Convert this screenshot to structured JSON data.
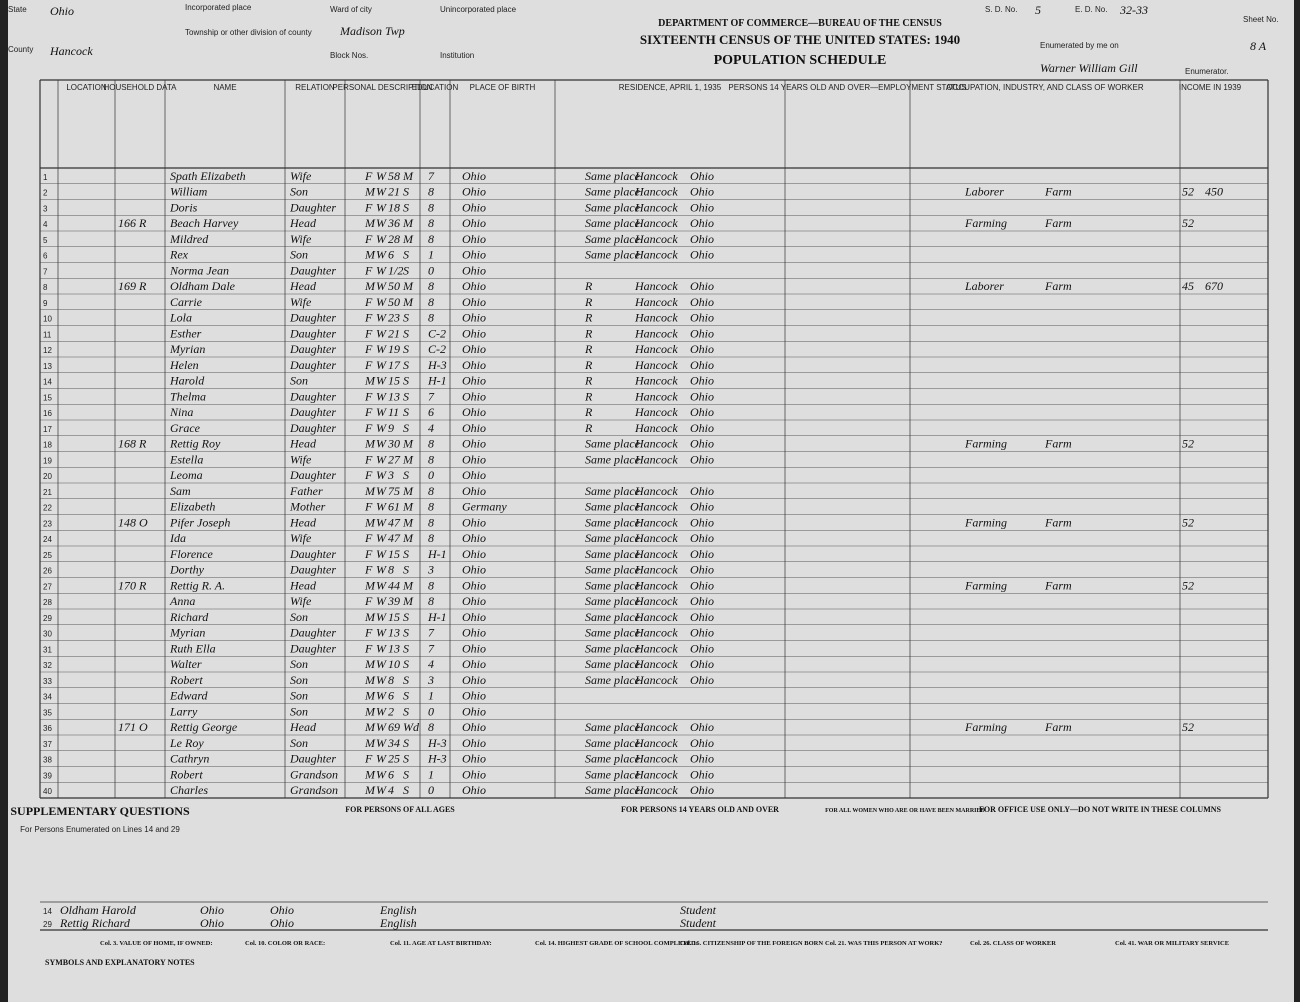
{
  "header": {
    "state_label": "State",
    "state": "Ohio",
    "county_label": "County",
    "county": "Hancock",
    "inc_place_label": "Incorporated place",
    "township_label": "Township or other division of county",
    "township": "Madison Twp",
    "ward_label": "Ward of city",
    "block_label": "Block Nos.",
    "uninc_label": "Unincorporated place",
    "institution_label": "Institution",
    "dept": "DEPARTMENT OF COMMERCE—BUREAU OF THE CENSUS",
    "census": "SIXTEENTH CENSUS OF THE UNITED STATES: 1940",
    "schedule": "POPULATION SCHEDULE",
    "sd_label": "S. D. No.",
    "sd": "5",
    "ed_label": "E. D. No.",
    "ed": "32-33",
    "sheet_label": "Sheet No.",
    "sheet": "8 A",
    "enum_label": "Enumerated by me on",
    "enumerator": "Warner William Gill",
    "enum_suffix": "Enumerator."
  },
  "columns": [
    "LOCATION",
    "HOUSEHOLD DATA",
    "NAME",
    "RELATION",
    "PERSONAL DESCRIPTION",
    "EDUCATION",
    "PLACE OF BIRTH",
    "RESIDENCE, APRIL 1, 1935",
    "PERSONS 14 YEARS OLD AND OVER—EMPLOYMENT STATUS",
    "OCCUPATION, INDUSTRY, AND CLASS OF WORKER",
    "INCOME IN 1939"
  ],
  "rows": [
    [
      "1",
      null,
      "Spath Elizabeth",
      "Wife",
      "F",
      "W",
      "58",
      "M",
      "7",
      "Ohio",
      "Same place",
      "Hancock",
      "Ohio",
      null,
      null,
      null,
      null
    ],
    [
      "2",
      null,
      "William",
      "Son",
      "M",
      "W",
      "21",
      "S",
      "8",
      "Ohio",
      "Same place",
      "Hancock",
      "Ohio",
      "Laborer",
      "Farm",
      "52",
      "450"
    ],
    [
      "3",
      null,
      "Doris",
      "Daughter",
      "F",
      "W",
      "18",
      "S",
      "8",
      "Ohio",
      "Same place",
      "Hancock",
      "Ohio",
      null,
      null,
      null,
      null
    ],
    [
      "4",
      "166 R",
      "Beach Harvey",
      "Head",
      "M",
      "W",
      "36",
      "M",
      "8",
      "Ohio",
      "Same place",
      "Hancock",
      "Ohio",
      "Farming",
      "Farm",
      "52",
      null
    ],
    [
      "5",
      null,
      "Mildred",
      "Wife",
      "F",
      "W",
      "28",
      "M",
      "8",
      "Ohio",
      "Same place",
      "Hancock",
      "Ohio",
      null,
      null,
      null,
      null
    ],
    [
      "6",
      null,
      "Rex",
      "Son",
      "M",
      "W",
      "6",
      "S",
      "1",
      "Ohio",
      "Same place",
      "Hancock",
      "Ohio",
      null,
      null,
      null,
      null
    ],
    [
      "7",
      null,
      "Norma Jean",
      "Daughter",
      "F",
      "W",
      "1/2",
      "S",
      "0",
      "Ohio",
      null,
      null,
      null,
      null,
      null,
      null,
      null
    ],
    [
      "8",
      "169 R",
      "Oldham Dale",
      "Head",
      "M",
      "W",
      "50",
      "M",
      "8",
      "Ohio",
      "R",
      "Hancock",
      "Ohio",
      "Laborer",
      "Farm",
      "45",
      "670"
    ],
    [
      "9",
      null,
      "Carrie",
      "Wife",
      "F",
      "W",
      "50",
      "M",
      "8",
      "Ohio",
      "R",
      "Hancock",
      "Ohio",
      null,
      null,
      null,
      null
    ],
    [
      "10",
      null,
      "Lola",
      "Daughter",
      "F",
      "W",
      "23",
      "S",
      "8",
      "Ohio",
      "R",
      "Hancock",
      "Ohio",
      null,
      null,
      null,
      null
    ],
    [
      "11",
      null,
      "Esther",
      "Daughter",
      "F",
      "W",
      "21",
      "S",
      "C-2",
      "Ohio",
      "R",
      "Hancock",
      "Ohio",
      null,
      null,
      null,
      null
    ],
    [
      "12",
      null,
      "Myrian",
      "Daughter",
      "F",
      "W",
      "19",
      "S",
      "C-2",
      "Ohio",
      "R",
      "Hancock",
      "Ohio",
      null,
      null,
      null,
      null
    ],
    [
      "13",
      null,
      "Helen",
      "Daughter",
      "F",
      "W",
      "17",
      "S",
      "H-3",
      "Ohio",
      "R",
      "Hancock",
      "Ohio",
      null,
      null,
      null,
      null
    ],
    [
      "14",
      null,
      "Harold",
      "Son",
      "M",
      "W",
      "15",
      "S",
      "H-1",
      "Ohio",
      "R",
      "Hancock",
      "Ohio",
      null,
      null,
      null,
      null
    ],
    [
      "15",
      null,
      "Thelma",
      "Daughter",
      "F",
      "W",
      "13",
      "S",
      "7",
      "Ohio",
      "R",
      "Hancock",
      "Ohio",
      null,
      null,
      null,
      null
    ],
    [
      "16",
      null,
      "Nina",
      "Daughter",
      "F",
      "W",
      "11",
      "S",
      "6",
      "Ohio",
      "R",
      "Hancock",
      "Ohio",
      null,
      null,
      null,
      null
    ],
    [
      "17",
      null,
      "Grace",
      "Daughter",
      "F",
      "W",
      "9",
      "S",
      "4",
      "Ohio",
      "R",
      "Hancock",
      "Ohio",
      null,
      null,
      null,
      null
    ],
    [
      "18",
      "168 R",
      "Rettig Roy",
      "Head",
      "M",
      "W",
      "30",
      "M",
      "8",
      "Ohio",
      "Same place",
      "Hancock",
      "Ohio",
      "Farming",
      "Farm",
      "52",
      null
    ],
    [
      "19",
      null,
      "Estella",
      "Wife",
      "F",
      "W",
      "27",
      "M",
      "8",
      "Ohio",
      "Same place",
      "Hancock",
      "Ohio",
      null,
      null,
      null,
      null
    ],
    [
      "20",
      null,
      "Leoma",
      "Daughter",
      "F",
      "W",
      "3",
      "S",
      "0",
      "Ohio",
      null,
      null,
      null,
      null,
      null,
      null,
      null
    ],
    [
      "21",
      null,
      "Sam",
      "Father",
      "M",
      "W",
      "75",
      "M",
      "8",
      "Ohio",
      "Same place",
      "Hancock",
      "Ohio",
      null,
      null,
      null,
      null
    ],
    [
      "22",
      null,
      "Elizabeth",
      "Mother",
      "F",
      "W",
      "61",
      "M",
      "8",
      "Germany",
      "Same place",
      "Hancock",
      "Ohio",
      null,
      null,
      null,
      null
    ],
    [
      "23",
      "148 O",
      "Pifer Joseph",
      "Head",
      "M",
      "W",
      "47",
      "M",
      "8",
      "Ohio",
      "Same place",
      "Hancock",
      "Ohio",
      "Farming",
      "Farm",
      "52",
      null
    ],
    [
      "24",
      null,
      "Ida",
      "Wife",
      "F",
      "W",
      "47",
      "M",
      "8",
      "Ohio",
      "Same place",
      "Hancock",
      "Ohio",
      null,
      null,
      null,
      null
    ],
    [
      "25",
      null,
      "Florence",
      "Daughter",
      "F",
      "W",
      "15",
      "S",
      "H-1",
      "Ohio",
      "Same place",
      "Hancock",
      "Ohio",
      null,
      null,
      null,
      null
    ],
    [
      "26",
      null,
      "Dorthy",
      "Daughter",
      "F",
      "W",
      "8",
      "S",
      "3",
      "Ohio",
      "Same place",
      "Hancock",
      "Ohio",
      null,
      null,
      null,
      null
    ],
    [
      "27",
      "170 R",
      "Rettig R. A.",
      "Head",
      "M",
      "W",
      "44",
      "M",
      "8",
      "Ohio",
      "Same place",
      "Hancock",
      "Ohio",
      "Farming",
      "Farm",
      "52",
      null
    ],
    [
      "28",
      null,
      "Anna",
      "Wife",
      "F",
      "W",
      "39",
      "M",
      "8",
      "Ohio",
      "Same place",
      "Hancock",
      "Ohio",
      null,
      null,
      null,
      null
    ],
    [
      "29",
      null,
      "Richard",
      "Son",
      "M",
      "W",
      "15",
      "S",
      "H-1",
      "Ohio",
      "Same place",
      "Hancock",
      "Ohio",
      null,
      null,
      null,
      null
    ],
    [
      "30",
      null,
      "Myrian",
      "Daughter",
      "F",
      "W",
      "13",
      "S",
      "7",
      "Ohio",
      "Same place",
      "Hancock",
      "Ohio",
      null,
      null,
      null,
      null
    ],
    [
      "31",
      null,
      "Ruth Ella",
      "Daughter",
      "F",
      "W",
      "13",
      "S",
      "7",
      "Ohio",
      "Same place",
      "Hancock",
      "Ohio",
      null,
      null,
      null,
      null
    ],
    [
      "32",
      null,
      "Walter",
      "Son",
      "M",
      "W",
      "10",
      "S",
      "4",
      "Ohio",
      "Same place",
      "Hancock",
      "Ohio",
      null,
      null,
      null,
      null
    ],
    [
      "33",
      null,
      "Robert",
      "Son",
      "M",
      "W",
      "8",
      "S",
      "3",
      "Ohio",
      "Same place",
      "Hancock",
      "Ohio",
      null,
      null,
      null,
      null
    ],
    [
      "34",
      null,
      "Edward",
      "Son",
      "M",
      "W",
      "6",
      "S",
      "1",
      "Ohio",
      null,
      null,
      null,
      null,
      null,
      null,
      null
    ],
    [
      "35",
      null,
      "Larry",
      "Son",
      "M",
      "W",
      "2",
      "S",
      "0",
      "Ohio",
      null,
      null,
      null,
      null,
      null,
      null,
      null
    ],
    [
      "36",
      "171 O",
      "Rettig George",
      "Head",
      "M",
      "W",
      "69",
      "Wd",
      "8",
      "Ohio",
      "Same place",
      "Hancock",
      "Ohio",
      "Farming",
      "Farm",
      "52",
      null
    ],
    [
      "37",
      null,
      "Le Roy",
      "Son",
      "M",
      "W",
      "34",
      "S",
      "H-3",
      "Ohio",
      "Same place",
      "Hancock",
      "Ohio",
      null,
      null,
      null,
      null
    ],
    [
      "38",
      null,
      "Cathryn",
      "Daughter",
      "F",
      "W",
      "25",
      "S",
      "H-3",
      "Ohio",
      "Same place",
      "Hancock",
      "Ohio",
      null,
      null,
      null,
      null
    ],
    [
      "39",
      null,
      "Robert",
      "Grandson",
      "M",
      "W",
      "6",
      "S",
      "1",
      "Ohio",
      "Same place",
      "Hancock",
      "Ohio",
      null,
      null,
      null,
      null
    ],
    [
      "40",
      null,
      "Charles",
      "Grandson",
      "M",
      "W",
      "4",
      "S",
      "0",
      "Ohio",
      "Same place",
      "Hancock",
      "Ohio",
      null,
      null,
      null,
      null
    ]
  ],
  "supplementary": {
    "title": "SUPPLEMENTARY QUESTIONS",
    "subtitle": "For Persons Enumerated on Lines 14 and 29",
    "sections": [
      "FOR PERSONS OF ALL AGES",
      "FOR PERSONS 14 YEARS OLD AND OVER",
      "FOR ALL WOMEN WHO ARE OR HAVE BEEN MARRIED",
      "FOR OFFICE USE ONLY—DO NOT WRITE IN THESE COLUMNS"
    ],
    "rows": [
      [
        "14",
        "Oldham Harold",
        "Ohio",
        "Ohio",
        "English",
        "Student"
      ],
      [
        "29",
        "Rettig Richard",
        "Ohio",
        "Ohio",
        "English",
        "Student"
      ]
    ]
  },
  "notes": [
    "SYMBOLS AND EXPLANATORY NOTES",
    "Col. 3. VALUE OF HOME, IF OWNED:",
    "Col. 10. COLOR OR RACE:",
    "Col. 11. AGE AT LAST BIRTHDAY:",
    "Col. 14. HIGHEST GRADE OF SCHOOL COMPLETED:",
    "Col. 16. CITIZENSHIP OF THE FOREIGN BORN",
    "Col. 21. WAS THIS PERSON AT WORK?",
    "Col. 26. CLASS OF WORKER",
    "Col. 41. WAR OR MILITARY SERVICE"
  ]
}
